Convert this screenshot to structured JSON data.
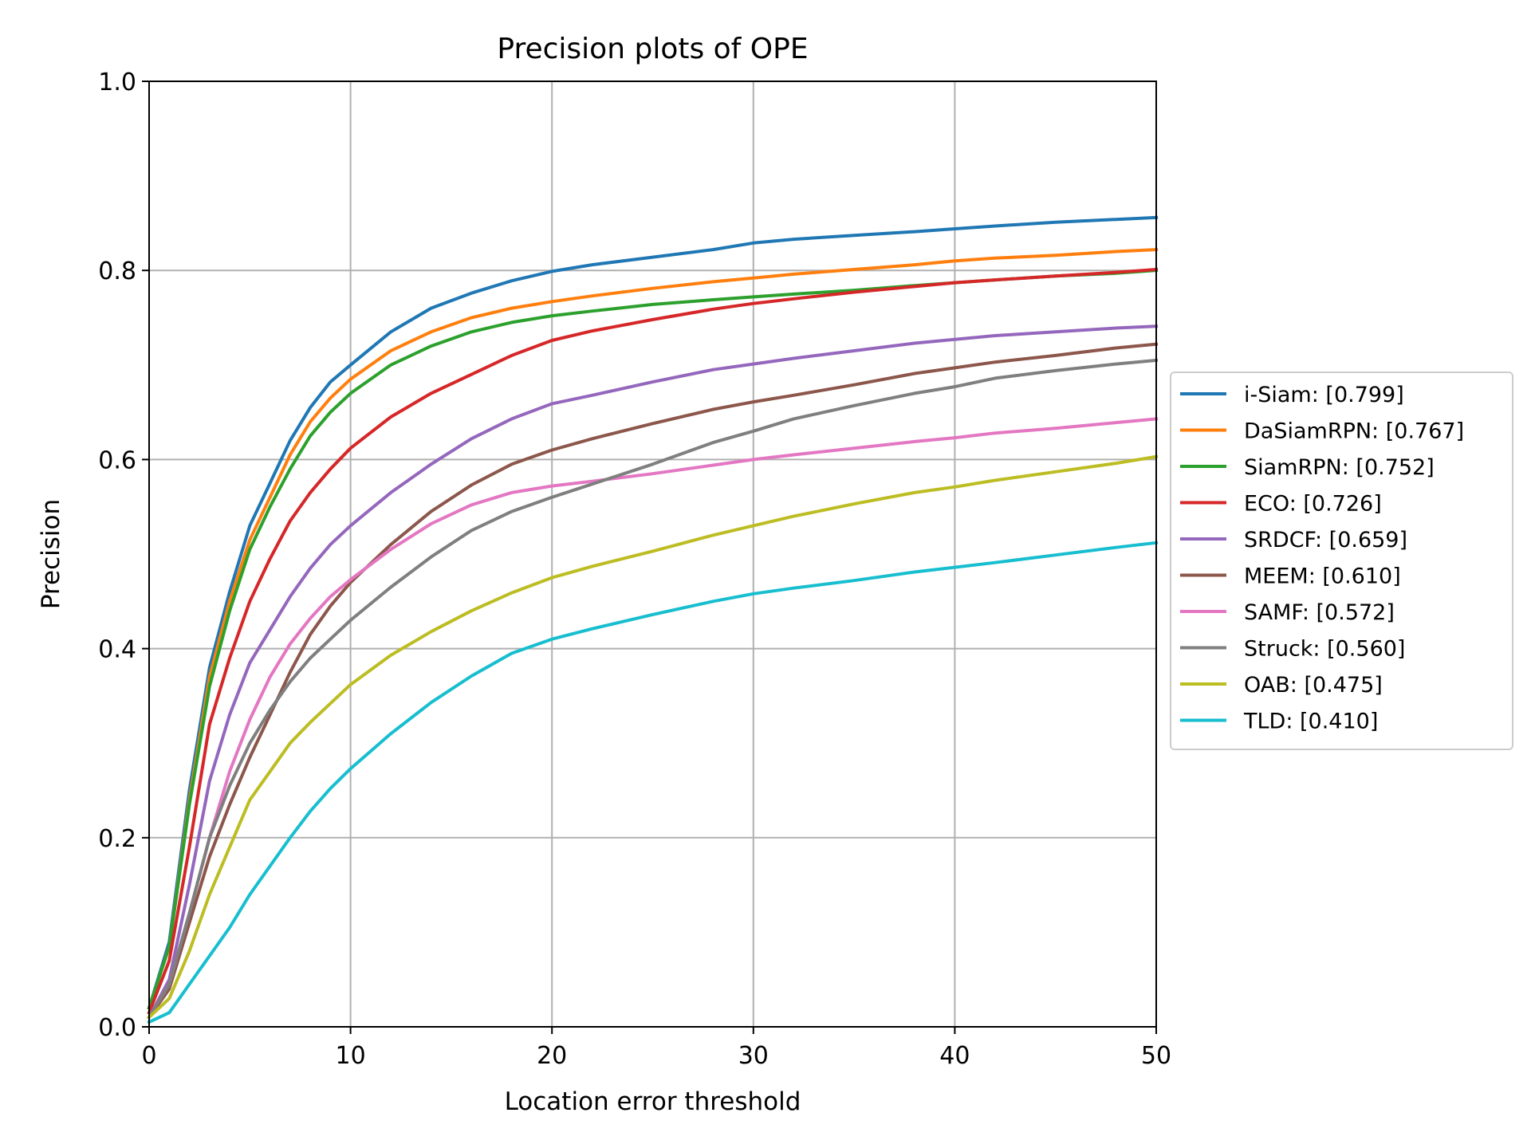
{
  "chart_data": {
    "type": "line",
    "title": "Precision plots of OPE",
    "xlabel": "Location error threshold",
    "ylabel": "Precision",
    "xlim": [
      0,
      50
    ],
    "ylim": [
      0,
      1
    ],
    "grid": true,
    "legend_position": "right-outside",
    "x_ticks": [
      "0",
      "10",
      "20",
      "30",
      "40",
      "50"
    ],
    "y_ticks": [
      "0.0",
      "0.2",
      "0.4",
      "0.6",
      "0.8",
      "1.0"
    ],
    "x": [
      0,
      1,
      2,
      3,
      4,
      5,
      6,
      7,
      8,
      9,
      10,
      12,
      14,
      16,
      18,
      20,
      22,
      25,
      28,
      30,
      32,
      35,
      38,
      40,
      42,
      45,
      48,
      50
    ],
    "series": [
      {
        "name": "i-Siam: [0.799]",
        "color": "#1f77b4",
        "values": [
          0.02,
          0.09,
          0.25,
          0.38,
          0.46,
          0.53,
          0.575,
          0.62,
          0.655,
          0.682,
          0.7,
          0.735,
          0.76,
          0.776,
          0.789,
          0.799,
          0.806,
          0.814,
          0.822,
          0.829,
          0.833,
          0.837,
          0.841,
          0.844,
          0.847,
          0.851,
          0.854,
          0.856
        ]
      },
      {
        "name": "DaSiamRPN: [0.767]",
        "color": "#ff7f0e",
        "values": [
          0.02,
          0.085,
          0.24,
          0.37,
          0.45,
          0.515,
          0.56,
          0.605,
          0.64,
          0.665,
          0.685,
          0.715,
          0.735,
          0.75,
          0.76,
          0.767,
          0.773,
          0.781,
          0.788,
          0.792,
          0.796,
          0.801,
          0.806,
          0.81,
          0.813,
          0.816,
          0.82,
          0.822
        ]
      },
      {
        "name": "SiamRPN: [0.752]",
        "color": "#2ca02c",
        "values": [
          0.02,
          0.085,
          0.235,
          0.36,
          0.44,
          0.505,
          0.55,
          0.59,
          0.625,
          0.65,
          0.67,
          0.7,
          0.72,
          0.735,
          0.745,
          0.752,
          0.757,
          0.764,
          0.769,
          0.772,
          0.775,
          0.779,
          0.784,
          0.787,
          0.79,
          0.794,
          0.797,
          0.8
        ]
      },
      {
        "name": "ECO: [0.726]",
        "color": "#d62728",
        "values": [
          0.015,
          0.07,
          0.19,
          0.32,
          0.39,
          0.45,
          0.495,
          0.535,
          0.565,
          0.59,
          0.612,
          0.645,
          0.67,
          0.69,
          0.71,
          0.726,
          0.736,
          0.748,
          0.759,
          0.765,
          0.77,
          0.777,
          0.783,
          0.787,
          0.79,
          0.794,
          0.798,
          0.801
        ]
      },
      {
        "name": "SRDCF: [0.659]",
        "color": "#9467bd",
        "values": [
          0.01,
          0.05,
          0.15,
          0.26,
          0.33,
          0.385,
          0.42,
          0.455,
          0.485,
          0.51,
          0.53,
          0.565,
          0.595,
          0.622,
          0.643,
          0.659,
          0.668,
          0.682,
          0.695,
          0.701,
          0.707,
          0.715,
          0.723,
          0.727,
          0.731,
          0.735,
          0.739,
          0.741
        ]
      },
      {
        "name": "MEEM: [0.610]",
        "color": "#8c564b",
        "values": [
          0.01,
          0.04,
          0.11,
          0.18,
          0.235,
          0.285,
          0.33,
          0.375,
          0.415,
          0.445,
          0.47,
          0.51,
          0.545,
          0.573,
          0.595,
          0.61,
          0.622,
          0.638,
          0.653,
          0.661,
          0.668,
          0.679,
          0.691,
          0.697,
          0.703,
          0.71,
          0.718,
          0.722
        ]
      },
      {
        "name": "SAMF: [0.572]",
        "color": "#e377c2",
        "values": [
          0.01,
          0.045,
          0.12,
          0.2,
          0.27,
          0.325,
          0.37,
          0.405,
          0.432,
          0.455,
          0.473,
          0.505,
          0.532,
          0.552,
          0.565,
          0.572,
          0.577,
          0.585,
          0.594,
          0.6,
          0.605,
          0.612,
          0.619,
          0.623,
          0.628,
          0.633,
          0.639,
          0.643
        ]
      },
      {
        "name": "Struck: [0.560]",
        "color": "#7f7f7f",
        "values": [
          0.01,
          0.045,
          0.12,
          0.2,
          0.255,
          0.3,
          0.335,
          0.365,
          0.39,
          0.41,
          0.43,
          0.465,
          0.497,
          0.525,
          0.545,
          0.56,
          0.574,
          0.595,
          0.618,
          0.63,
          0.643,
          0.657,
          0.67,
          0.677,
          0.686,
          0.694,
          0.701,
          0.705
        ]
      },
      {
        "name": "OAB: [0.475]",
        "color": "#bcbd22",
        "values": [
          0.01,
          0.03,
          0.08,
          0.14,
          0.19,
          0.24,
          0.27,
          0.3,
          0.322,
          0.342,
          0.362,
          0.393,
          0.418,
          0.44,
          0.459,
          0.475,
          0.487,
          0.503,
          0.52,
          0.53,
          0.54,
          0.553,
          0.565,
          0.571,
          0.578,
          0.587,
          0.596,
          0.603
        ]
      },
      {
        "name": "TLD: [0.410]",
        "color": "#17becf",
        "values": [
          0.005,
          0.015,
          0.045,
          0.075,
          0.105,
          0.14,
          0.17,
          0.2,
          0.228,
          0.252,
          0.273,
          0.31,
          0.343,
          0.371,
          0.395,
          0.41,
          0.421,
          0.436,
          0.45,
          0.458,
          0.464,
          0.472,
          0.481,
          0.486,
          0.491,
          0.499,
          0.507,
          0.512
        ]
      }
    ]
  }
}
